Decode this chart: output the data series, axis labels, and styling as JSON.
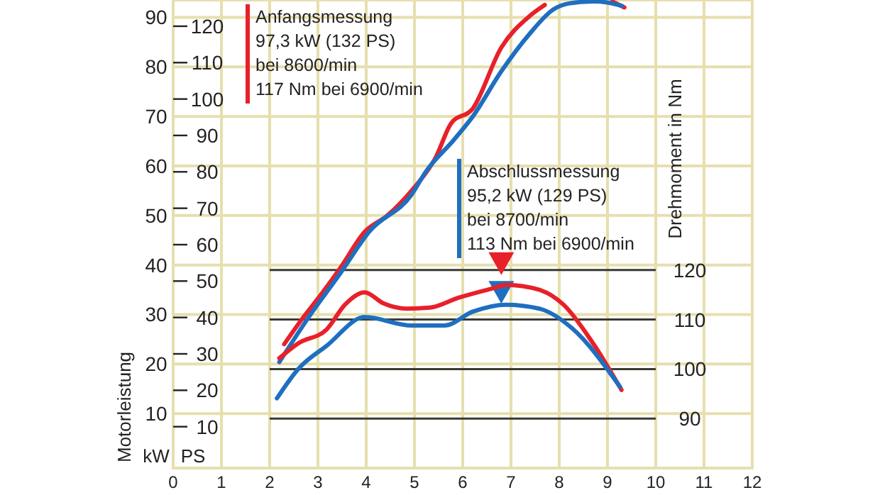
{
  "chart_data": {
    "type": "line",
    "xlim": [
      0,
      12
    ],
    "xticks": [
      0,
      1,
      2,
      3,
      4,
      5,
      6,
      7,
      8,
      9,
      10,
      11,
      12
    ],
    "ylim": [
      -1,
      93.5
    ],
    "yticks": [
      10,
      20,
      30,
      40,
      50,
      60,
      70,
      80,
      90
    ],
    "ylabel": "kW",
    "y2lim": [
      -1.36,
      127.2
    ],
    "y2ticks": [
      10,
      20,
      30,
      40,
      50,
      60,
      70,
      80,
      90,
      100,
      110,
      120
    ],
    "y2label": "PS",
    "y3lim": [
      80.02,
      174.52
    ],
    "y3ticks": [
      90,
      100,
      110,
      120
    ],
    "y3label": "Drehmoment in Nm",
    "grid": true,
    "legend": "top left",
    "line_style": "solid",
    "ref_lines": [
      {
        "axis": "y3",
        "value": 90,
        "color": "#3a3a32"
      },
      {
        "axis": "y3",
        "value": 100,
        "color": "#3a3a32"
      },
      {
        "axis": "y3",
        "value": 110,
        "color": "#3a3a32"
      },
      {
        "axis": "y3",
        "value": 120,
        "color": "#3a3a32"
      }
    ],
    "annotations": [
      "Motorleistung",
      "97,3 kW (132 PS)",
      "bei 8600/min",
      "117 Nm bei 6900/min",
      "95,2 kW (129 PS)",
      "bei 8700/min",
      "113 Nm bei 6900/min"
    ],
    "series": [
      {
        "name": "Anfangsmessung",
        "color": "#e8202a",
        "x": [
          2.3,
          2.68,
          3.1,
          3.47,
          3.97,
          4.44,
          4.94,
          5.44,
          5.76,
          6.21,
          6.8,
          7.38,
          7.7,
          8.5,
          9.1,
          9.35
        ],
        "values": [
          24,
          29.2,
          34.5,
          39.5,
          46.7,
          50,
          55,
          61.7,
          68.6,
          71.6,
          83.9,
          90.2,
          92.5,
          null,
          93.2,
          92.0
        ]
      },
      {
        "name": "Abschlussmessung",
        "color": "#1f6fc0",
        "x": [
          2.2,
          2.79,
          3.47,
          4.06,
          4.94,
          5.24,
          5.82,
          6.21,
          6.8,
          7.38,
          7.88,
          8.2,
          8.7,
          9.0,
          9.3
        ],
        "values": [
          20.4,
          29.2,
          38.4,
          46.7,
          54.2,
          58.9,
          65.3,
          70,
          79.1,
          86.6,
          91.6,
          92.8,
          93.2,
          93.0,
          92.3
        ]
      },
      {
        "color": "#e8202a",
        "axis": "y3",
        "x": [
          2.2,
          2.59,
          3.18,
          3.56,
          3.97,
          4.35,
          4.85,
          5.32,
          5.91,
          6.62,
          6.9,
          7.59,
          8.09,
          8.68,
          9.29
        ],
        "values": [
          102.2,
          105.2,
          108,
          113,
          115.5,
          113.3,
          112.2,
          112.4,
          114.4,
          116.3,
          117,
          116,
          113,
          105.5,
          95.8
        ]
      },
      {
        "color": "#1f6fc0",
        "axis": "y3",
        "x": [
          2.15,
          2.59,
          3.18,
          3.97,
          4.94,
          5.62,
          6.21,
          6.9,
          7.59,
          8.26,
          9.26
        ],
        "values": [
          94.1,
          100,
          104.7,
          110.5,
          108.8,
          108.8,
          111.6,
          113,
          112.2,
          108.3,
          96.4
        ]
      },
      {
        "type": "scatter",
        "marker": "triangle",
        "color": "#e8202a",
        "axis": "y3",
        "x": [
          6.8
        ],
        "values": [
          121.3
        ]
      },
      {
        "type": "scatter",
        "marker": "triangle",
        "color": "#1f6fc0",
        "axis": "y3",
        "x": [
          6.8
        ],
        "values": [
          115.5
        ]
      }
    ]
  }
}
